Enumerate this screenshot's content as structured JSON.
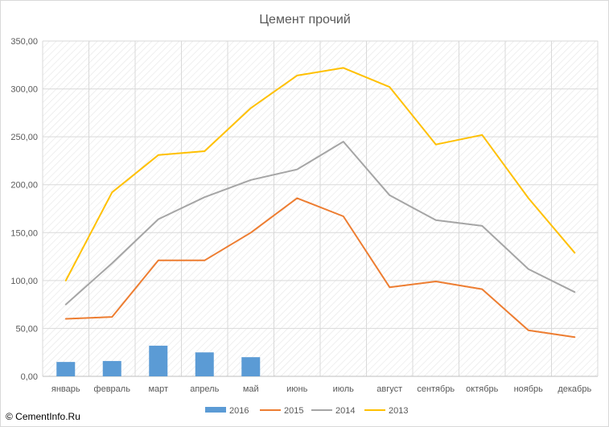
{
  "chart_data": {
    "type": "line",
    "title": "Цемент прочий",
    "xlabel": "",
    "ylabel": "",
    "ylim": [
      0,
      350
    ],
    "yticks": [
      "0,00",
      "50,00",
      "100,00",
      "150,00",
      "200,00",
      "250,00",
      "300,00",
      "350,00"
    ],
    "categories": [
      "январь",
      "февраль",
      "март",
      "апрель",
      "май",
      "июнь",
      "июль",
      "август",
      "сентябрь",
      "октябрь",
      "ноябрь",
      "декабрь"
    ],
    "grid": true,
    "legend_position": "bottom",
    "series": [
      {
        "name": "2016",
        "kind": "bar",
        "color": "#5b9bd5",
        "values": [
          15,
          16,
          32,
          25,
          20,
          null,
          null,
          null,
          null,
          null,
          null,
          null
        ]
      },
      {
        "name": "2015",
        "kind": "line",
        "color": "#ed7d31",
        "values": [
          60,
          62,
          121,
          121,
          150,
          186,
          167,
          93,
          99,
          91,
          48,
          41
        ]
      },
      {
        "name": "2014",
        "kind": "line",
        "color": "#a5a5a5",
        "values": [
          75,
          118,
          164,
          187,
          205,
          216,
          245,
          189,
          163,
          157,
          112,
          88
        ]
      },
      {
        "name": "2013",
        "kind": "line",
        "color": "#ffc000",
        "values": [
          100,
          192,
          231,
          235,
          280,
          314,
          322,
          302,
          242,
          252,
          186,
          129
        ]
      }
    ]
  },
  "watermark": "© CementInfo.Ru"
}
